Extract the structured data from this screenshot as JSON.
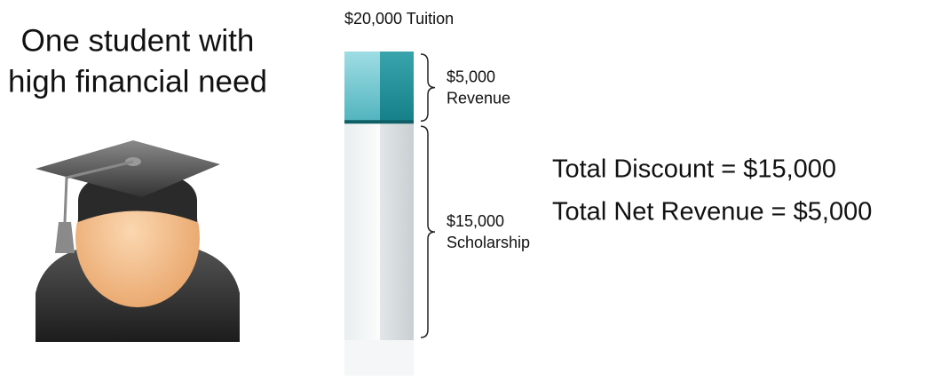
{
  "heading": [
    "One student with",
    "high financial need"
  ],
  "bar": {
    "title": "$20,000 Tuition",
    "segments": [
      {
        "value": 5000,
        "label": [
          "$5,000",
          "Revenue"
        ]
      },
      {
        "value": 15000,
        "label": [
          "$15,000",
          "Scholarship"
        ]
      }
    ]
  },
  "totals": [
    "Total Discount = $15,000",
    "Total Net Revenue = $5,000"
  ]
}
